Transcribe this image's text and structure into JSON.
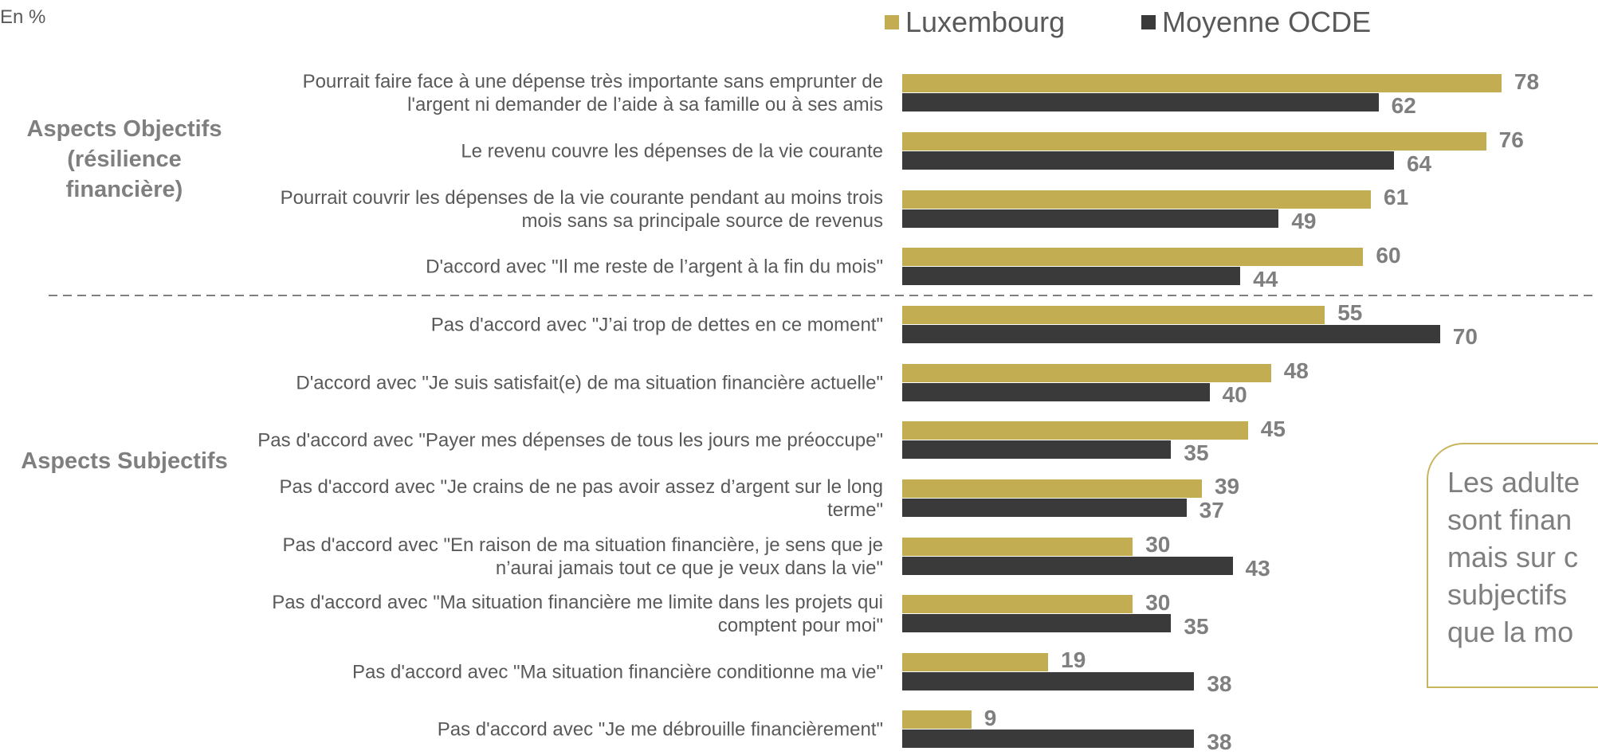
{
  "chart_data": {
    "type": "bar",
    "orientation": "horizontal",
    "unit_note": "En %",
    "series": [
      {
        "name": "Luxembourg",
        "color": "#c3ad53",
        "values": [
          78,
          76,
          61,
          60,
          55,
          48,
          45,
          39,
          30,
          30,
          19,
          9
        ]
      },
      {
        "name": "Moyenne OCDE",
        "color": "#3a3a3a",
        "values": [
          62,
          64,
          49,
          44,
          70,
          40,
          35,
          37,
          43,
          35,
          38,
          38
        ]
      }
    ],
    "groups": [
      {
        "label": "Aspects Objectifs (résilience financière)",
        "categories": [
          "Pourrait faire face à une dépense très importante sans emprunter de l'argent ni demander de l’aide à sa famille ou à ses amis",
          "Le revenu couvre les dépenses de la vie courante",
          "Pourrait couvrir les dépenses de la vie courante pendant au moins trois mois sans sa principale source de revenus",
          "D'accord avec \"Il me reste de l’argent à la fin du mois\""
        ]
      },
      {
        "label": "Aspects Subjectifs",
        "categories": [
          "Pas d'accord avec \"J’ai trop de dettes en ce moment\"",
          "D'accord avec \"Je suis satisfait(e) de ma situation financière actuelle\"",
          "Pas d'accord avec \"Payer mes dépenses de tous les jours me préoccupe\"",
          "Pas d'accord avec \"Je crains de ne pas avoir assez d’argent sur le long terme\"",
          "Pas d'accord avec \"En raison de ma situation financière, je sens que je n’aurai jamais tout ce que je veux dans la vie\"",
          "Pas d'accord avec \"Ma situation financière me limite dans les projets qui comptent pour moi\"",
          "Pas d'accord avec \"Ma situation financière conditionne ma vie\"",
          "Pas d'accord avec \"Je me débrouille financièrement\""
        ]
      }
    ],
    "annotation": [
      "Les adulte",
      "sont finan",
      "mais sur c",
      "subjectifs",
      "que la mo"
    ]
  }
}
